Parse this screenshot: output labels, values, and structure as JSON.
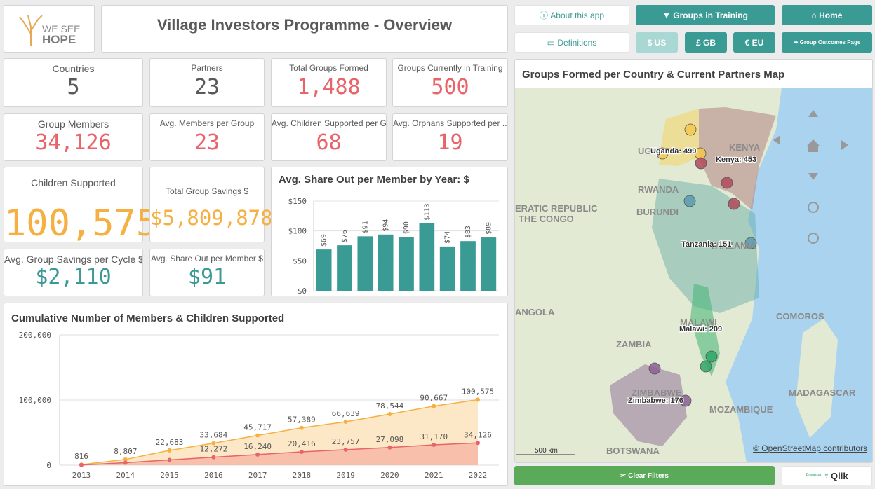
{
  "header": {
    "logo_line1": "WE SEE",
    "logo_line2": "HOPE",
    "title": "Village Investors Programme - Overview"
  },
  "buttons": {
    "about": "About this app",
    "groups_in_training": "Groups in Training",
    "home": "Home",
    "definitions": "Definitions",
    "usd": "$ US",
    "gbp": "£ GB",
    "eur": "€ EU",
    "group_outcomes": "Group Outcomes Page",
    "clear_filters": "Clear Filters",
    "powered_by": "Powered by",
    "qlik": "Qlik"
  },
  "kpis": [
    {
      "label": "Countries",
      "value": "5",
      "color": "#595959"
    },
    {
      "label": "Partners",
      "value": "23",
      "color": "#595959"
    },
    {
      "label": "Total Groups Formed",
      "value": "1,488",
      "color": "#e8636a"
    },
    {
      "label": "Groups Currently in Training",
      "value": "500",
      "color": "#e8636a"
    },
    {
      "label": "Group Members",
      "value": "34,126",
      "color": "#e8636a"
    },
    {
      "label": "Avg. Members per Group",
      "value": "23",
      "color": "#e8636a"
    },
    {
      "label": "Avg. Children Supported per G...",
      "value": "68",
      "color": "#e8636a"
    },
    {
      "label": "Avg. Orphans Supported per ...",
      "value": "19",
      "color": "#e8636a"
    },
    {
      "label": "Children Supported",
      "value": "100,575",
      "color": "#f5b041"
    },
    {
      "label": "Total Group Savings $",
      "value": "$5,809,878",
      "color": "#f5b041"
    },
    {
      "label": "Avg. Group Savings per Cycle $",
      "value": "$2,110",
      "color": "#3a9a94"
    },
    {
      "label": "Avg. Share Out per Member $",
      "value": "$91",
      "color": "#3a9a94"
    }
  ],
  "chart_data": [
    {
      "type": "bar",
      "title": "Avg. Share Out per Member by Year: $",
      "categories": [
        null,
        null,
        null,
        null,
        null,
        null,
        null,
        null,
        null
      ],
      "values": [
        69,
        76,
        91,
        94,
        90,
        113,
        74,
        83,
        89
      ],
      "value_labels": [
        "$69",
        "$76",
        "$91",
        "$94",
        "$90",
        "$113",
        "$74",
        "$83",
        "$89"
      ],
      "color": "#3a9a94",
      "ylim": [
        0,
        150
      ],
      "yticks": [
        {
          "value": 0,
          "label": "$0"
        },
        {
          "value": 50,
          "label": "$50"
        },
        {
          "value": 100,
          "label": "$100"
        },
        {
          "value": 150,
          "label": "$150"
        }
      ],
      "grid": true
    },
    {
      "type": "line",
      "title": "Cumulative Number of Members & Children Supported",
      "categories": [
        "2013",
        "2014",
        "2015",
        "2016",
        "2017",
        "2018",
        "2019",
        "2020",
        "2021",
        "2022"
      ],
      "series": [
        {
          "color": "#f5b041",
          "fill": "#fbe3bc",
          "values": [
            816,
            8807,
            22683,
            33684,
            45717,
            57389,
            66639,
            78544,
            90667,
            100575
          ],
          "value_labels": [
            "816",
            "8,807",
            "22,683",
            "33,684",
            "45,717",
            "57,389",
            "66,639",
            "78,544",
            "90,667",
            "100,575"
          ]
        },
        {
          "color": "#e8636a",
          "fill": "#f7b9a6",
          "values": [
            300,
            3800,
            8000,
            12272,
            16240,
            20416,
            23757,
            27098,
            31170,
            34126
          ],
          "value_labels": [
            null,
            null,
            null,
            "12,272",
            "16,240",
            "20,416",
            "23,757",
            "27,098",
            "31,170",
            "34,126"
          ]
        }
      ],
      "ylim": [
        0,
        200000
      ],
      "yticks": [
        0,
        {
          "value": 100000,
          "label": "100,000"
        },
        {
          "value": 200000,
          "label": "200,000"
        }
      ],
      "grid": true
    }
  ],
  "map": {
    "title": "Groups Formed per Country & Current Partners Map",
    "labels": [
      "UGANDA",
      "KENYA",
      "RWANDA",
      "BURUNDI",
      "ERATIC REPUBLIC",
      "THE CONGO",
      "TANZANIA",
      "ANGOLA",
      "MALAWI",
      "ZAMBIA",
      "COMOROS",
      "ZIMBABWE",
      "MOZAMBIQUE",
      "MADAGASCAR",
      "BOTSWANA"
    ],
    "country_values": [
      "Uganda: 499",
      "Kenya: 453",
      "Tanzania: 151",
      "Malawi: 209",
      "Zimbabwe: 176"
    ],
    "scale": "500 km",
    "attribution": "© OpenStreetMap contributors"
  }
}
